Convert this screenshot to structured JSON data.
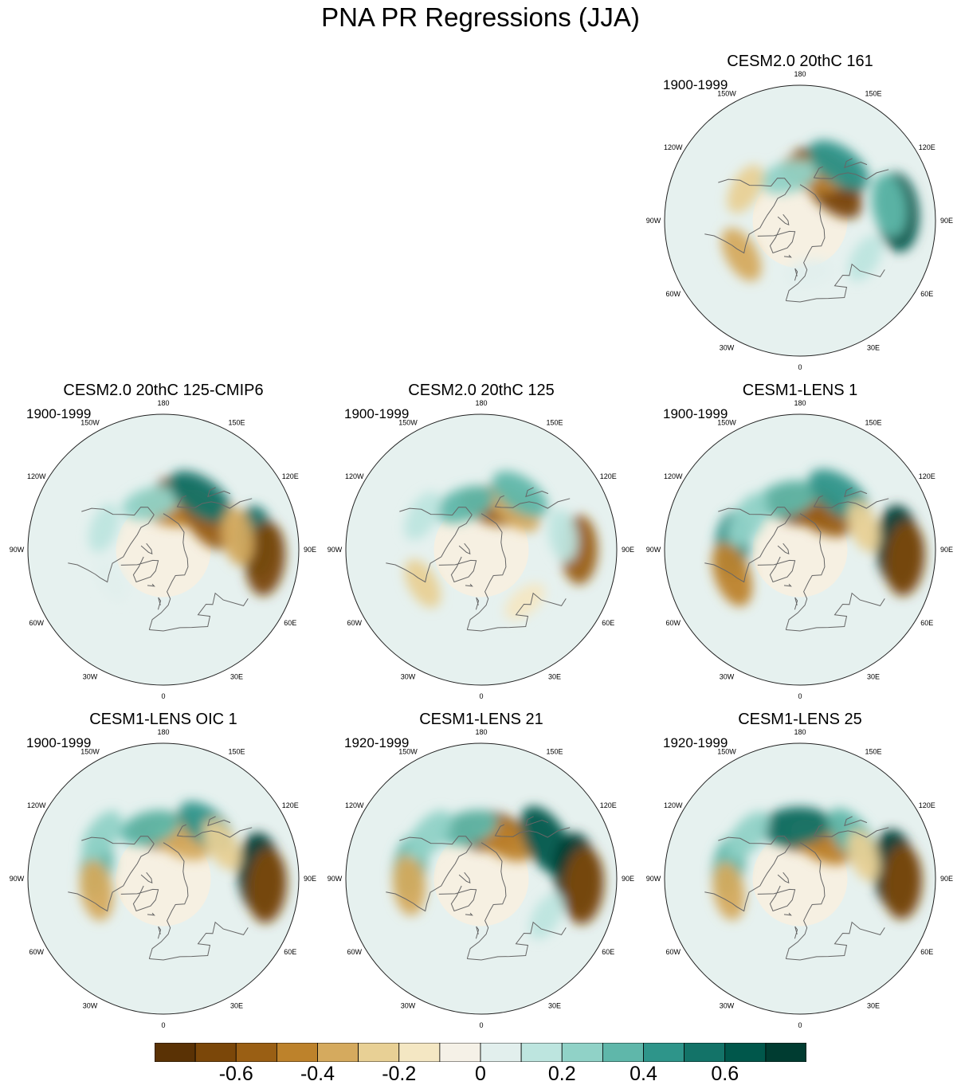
{
  "title": "PNA PR Regressions (JJA)",
  "longitude_labels": [
    "180",
    "150E",
    "120E",
    "90E",
    "60E",
    "30E",
    "0",
    "30W",
    "60W",
    "90W",
    "120W",
    "150W"
  ],
  "panels": [
    {
      "id": "cesm2-161",
      "title": "CESM2.0 20thC 161",
      "period": "1900-1999",
      "anomalies": [
        [
          150,
          55,
          -0.7
        ],
        [
          135,
          60,
          -0.6
        ],
        [
          165,
          58,
          -0.45
        ],
        [
          -165,
          60,
          0.3
        ],
        [
          145,
          45,
          0.5
        ],
        [
          95,
          25,
          0.7
        ],
        [
          100,
          30,
          0.4
        ],
        [
          -60,
          45,
          -0.3
        ],
        [
          -120,
          48,
          -0.2
        ],
        [
          60,
          40,
          0.15
        ],
        [
          10,
          55,
          0.1
        ]
      ]
    },
    {
      "id": "cesm2-125-cmip6",
      "title": "CESM2.0 20thC 125-CMIP6",
      "period": "1900-1999",
      "anomalies": [
        [
          150,
          55,
          -0.65
        ],
        [
          170,
          62,
          -0.45
        ],
        [
          125,
          55,
          -0.5
        ],
        [
          -165,
          58,
          0.3
        ],
        [
          145,
          47,
          0.55
        ],
        [
          95,
          28,
          0.55
        ],
        [
          85,
          22,
          -0.6
        ],
        [
          100,
          40,
          -0.3
        ],
        [
          -110,
          48,
          0.15
        ],
        [
          -60,
          50,
          0.1
        ]
      ]
    },
    {
      "id": "cesm2-125",
      "title": "CESM2.0 20thC 125",
      "period": "1900-1999",
      "anomalies": [
        [
          165,
          60,
          -0.5
        ],
        [
          140,
          55,
          -0.3
        ],
        [
          -160,
          58,
          0.35
        ],
        [
          145,
          45,
          0.4
        ],
        [
          90,
          25,
          -0.5
        ],
        [
          100,
          35,
          0.2
        ],
        [
          -60,
          45,
          -0.2
        ],
        [
          -120,
          45,
          0.2
        ],
        [
          40,
          45,
          -0.1
        ]
      ]
    },
    {
      "id": "cesm1-lens-1",
      "title": "CESM1-LENS 1",
      "period": "1900-1999",
      "anomalies": [
        [
          175,
          60,
          -0.65
        ],
        [
          150,
          62,
          -0.5
        ],
        [
          -165,
          55,
          0.4
        ],
        [
          145,
          45,
          0.5
        ],
        [
          92,
          25,
          0.75
        ],
        [
          85,
          20,
          -0.6
        ],
        [
          -95,
          45,
          0.45
        ],
        [
          -70,
          42,
          -0.45
        ],
        [
          -120,
          50,
          0.3
        ],
        [
          110,
          45,
          -0.2
        ]
      ]
    },
    {
      "id": "cesm1-lens-oic-1",
      "title": "CESM1-LENS OIC 1",
      "period": "1900-1999",
      "anomalies": [
        [
          180,
          58,
          -0.5
        ],
        [
          155,
          62,
          -0.35
        ],
        [
          -165,
          55,
          0.35
        ],
        [
          140,
          45,
          0.45
        ],
        [
          93,
          26,
          0.75
        ],
        [
          86,
          21,
          -0.6
        ],
        [
          -100,
          45,
          0.35
        ],
        [
          -80,
          45,
          -0.35
        ],
        [
          -125,
          40,
          0.25
        ],
        [
          120,
          45,
          -0.25
        ]
      ]
    },
    {
      "id": "cesm1-lens-21",
      "title": "CESM1-LENS 21",
      "period": "1920-1999",
      "anomalies": [
        [
          175,
          58,
          -0.6
        ],
        [
          150,
          60,
          -0.4
        ],
        [
          -165,
          55,
          0.35
        ],
        [
          120,
          40,
          0.65
        ],
        [
          93,
          27,
          0.75
        ],
        [
          86,
          22,
          -0.65
        ],
        [
          -100,
          42,
          0.4
        ],
        [
          -85,
          42,
          -0.35
        ],
        [
          -130,
          45,
          0.3
        ],
        [
          60,
          40,
          0.15
        ]
      ]
    },
    {
      "id": "cesm1-lens-25",
      "title": "CESM1-LENS 25",
      "period": "1920-1999",
      "anomalies": [
        [
          175,
          58,
          -0.65
        ],
        [
          150,
          62,
          -0.45
        ],
        [
          -175,
          55,
          0.55
        ],
        [
          130,
          45,
          0.4
        ],
        [
          95,
          27,
          0.75
        ],
        [
          88,
          22,
          -0.6
        ],
        [
          -100,
          42,
          0.35
        ],
        [
          -80,
          42,
          -0.3
        ],
        [
          -130,
          45,
          0.25
        ],
        [
          110,
          45,
          -0.2
        ]
      ]
    }
  ],
  "colorbar": {
    "colors": [
      "#5a3205",
      "#7b4709",
      "#9a5f14",
      "#bd822b",
      "#d5aa5e",
      "#e8d095",
      "#f4e7c3",
      "#f5f1e7",
      "#e2efed",
      "#bde5df",
      "#90d2c7",
      "#5fb7aa",
      "#2e958a",
      "#137368",
      "#00574b",
      "#003c31"
    ],
    "levels": [
      -0.7,
      -0.6,
      -0.5,
      -0.4,
      -0.3,
      -0.2,
      -0.1,
      0,
      0.1,
      0.2,
      0.3,
      0.4,
      0.5,
      0.6,
      0.7
    ],
    "tick_labels": [
      "-0.6",
      "-0.4",
      "-0.2",
      "0",
      "0.2",
      "0.4",
      "0.6"
    ]
  }
}
